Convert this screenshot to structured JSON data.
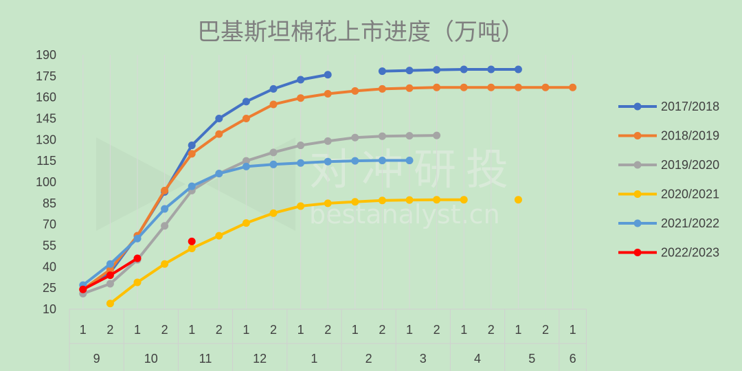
{
  "chart_data": {
    "type": "line",
    "title": "巴基斯坦棉花上市进度（万吨）",
    "watermark": {
      "cn": "对冲研投",
      "en": "bestanalyst.cn"
    },
    "ylim": [
      10,
      190
    ],
    "yticks": [
      10,
      25,
      40,
      55,
      70,
      85,
      100,
      115,
      130,
      145,
      160,
      175,
      190
    ],
    "x": [
      "1",
      "2",
      "1",
      "2",
      "1",
      "2",
      "1",
      "2",
      "1",
      "2",
      "1",
      "2",
      "1",
      "2",
      "1",
      "2",
      "1",
      "2",
      "1"
    ],
    "month_groups": [
      {
        "label": "9",
        "span": 2
      },
      {
        "label": "10",
        "span": 2
      },
      {
        "label": "11",
        "span": 2
      },
      {
        "label": "12",
        "span": 2
      },
      {
        "label": "1",
        "span": 2
      },
      {
        "label": "2",
        "span": 2
      },
      {
        "label": "3",
        "span": 2
      },
      {
        "label": "4",
        "span": 2
      },
      {
        "label": "5",
        "span": 2
      },
      {
        "label": "6",
        "span": 1
      }
    ],
    "grid": "vertical",
    "legend_position": "right",
    "series": [
      {
        "name": "2017/2018",
        "color": "#4472c4",
        "values": [
          24,
          36,
          62,
          93,
          126,
          145,
          157,
          166,
          172.5,
          176,
          null,
          178.5,
          179,
          179.5,
          179.8,
          179.8,
          179.8,
          null,
          null
        ]
      },
      {
        "name": "2018/2019",
        "color": "#ed7d31",
        "values": [
          24,
          38,
          62,
          94,
          120,
          134,
          145,
          155,
          159.5,
          162.5,
          164.5,
          166,
          166.5,
          167,
          167,
          167,
          167,
          167,
          167
        ]
      },
      {
        "name": "2019/2020",
        "color": "#a5a5a5",
        "values": [
          21,
          28,
          45,
          69,
          94,
          106,
          115,
          121,
          126,
          129,
          131.5,
          132.5,
          132.8,
          133,
          null,
          null,
          null,
          null,
          null
        ]
      },
      {
        "name": "2020/2021",
        "color": "#ffc000",
        "values": [
          null,
          14,
          29,
          42,
          53,
          62,
          71,
          78,
          83,
          85,
          86,
          87,
          87.3,
          87.5,
          87.5,
          null,
          87.5,
          null,
          null
        ]
      },
      {
        "name": "2021/2022",
        "color": "#5b9bd5",
        "values": [
          27,
          42,
          60,
          81,
          97,
          106,
          111,
          112.5,
          113.5,
          114.5,
          115,
          115.3,
          115.3,
          null,
          null,
          null,
          null,
          null,
          null
        ]
      },
      {
        "name": "2022/2023",
        "color": "#ff0000",
        "values": [
          24,
          34,
          46,
          null,
          58,
          null,
          null,
          null,
          null,
          null,
          null,
          null,
          null,
          null,
          null,
          null,
          null,
          null,
          null
        ]
      }
    ]
  }
}
